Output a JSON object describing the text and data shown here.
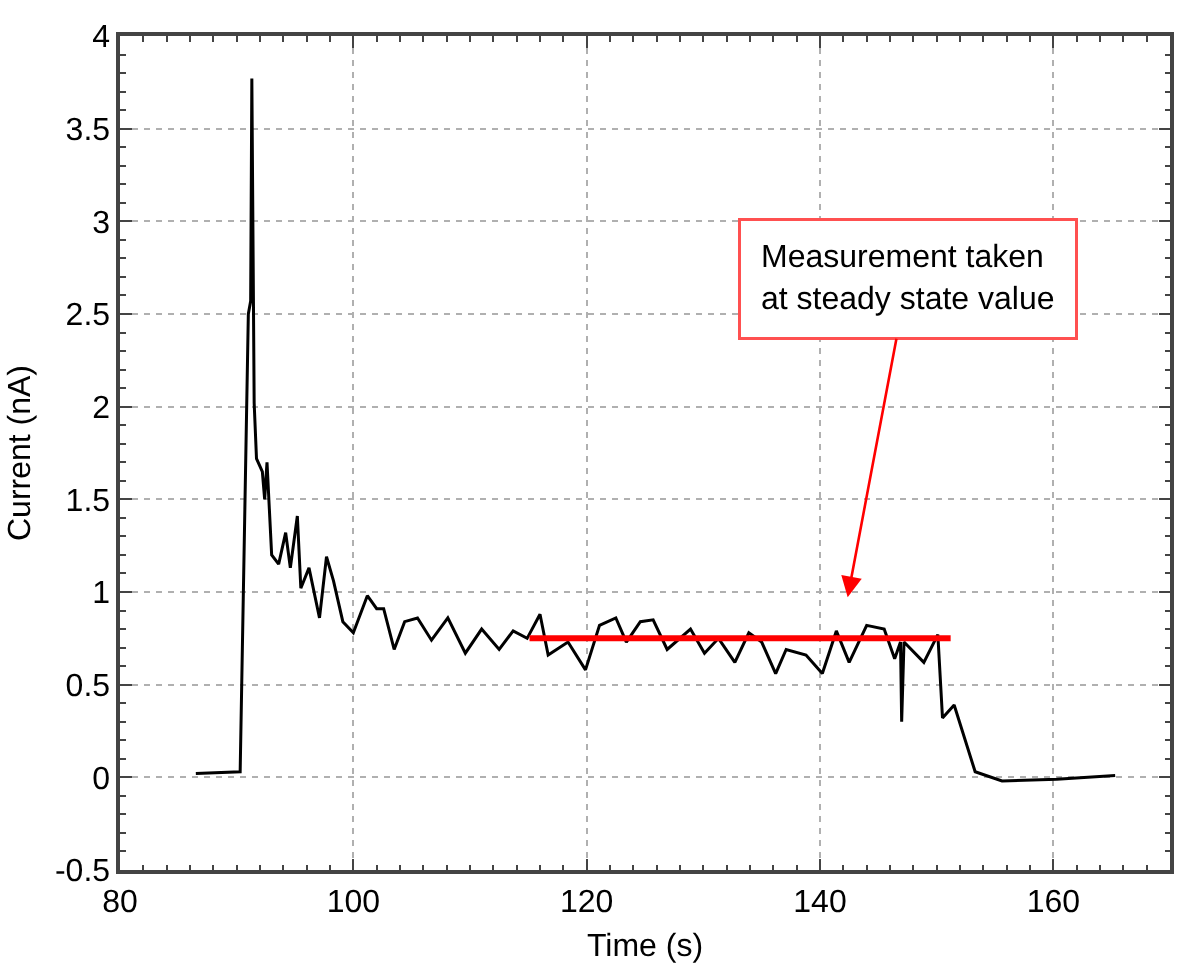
{
  "chart_data": {
    "type": "line",
    "xlabel": "Time (s)",
    "ylabel": "Current (nA)",
    "xlim": [
      80,
      170
    ],
    "xticks": [
      80,
      100,
      120,
      140,
      160
    ],
    "ylim": [
      -0.5,
      4
    ],
    "yticks": [
      -0.5,
      0,
      0.5,
      1,
      1.5,
      2,
      2.5,
      3,
      3.5,
      4
    ],
    "grid": true,
    "marker": "none",
    "line_style": "solid",
    "series": [
      {
        "color": "#000000",
        "x": [
          86.5,
          90.3,
          91.0,
          91.2,
          91.3,
          91.5,
          91.7,
          92.2,
          92.4,
          92.6,
          93.0,
          93.6,
          94.2,
          94.6,
          95.2,
          95.5,
          96.2,
          97.1,
          97.7,
          98.3,
          99.1,
          100,
          101.2,
          102,
          102.6,
          103.5,
          104.4,
          105.5,
          106.7,
          108.1,
          109.6,
          111.0,
          112.5,
          113.7,
          114.9,
          116,
          116.7,
          118.4,
          119.9,
          121.1,
          122.5,
          123.4,
          124.6,
          125.7,
          126.9,
          128.9,
          130.1,
          131.3,
          132.7,
          133.9,
          135,
          136.2,
          137.1,
          138.8,
          140.2,
          141.4,
          142.5,
          144.0,
          145.5,
          146.4,
          146.9,
          147.0,
          147.2,
          148.9,
          150.1,
          150.5,
          151.5,
          153.3,
          155.6,
          160.3,
          165.3
        ],
        "values": [
          0.02,
          0.03,
          2.5,
          2.57,
          3.77,
          2.02,
          1.72,
          1.65,
          1.5,
          1.7,
          1.2,
          1.15,
          1.32,
          1.13,
          1.41,
          1.02,
          1.13,
          0.86,
          1.19,
          1.06,
          0.84,
          0.78,
          0.98,
          0.91,
          0.91,
          0.69,
          0.84,
          0.86,
          0.74,
          0.86,
          0.67,
          0.8,
          0.69,
          0.79,
          0.75,
          0.88,
          0.66,
          0.73,
          0.58,
          0.82,
          0.86,
          0.73,
          0.84,
          0.85,
          0.69,
          0.8,
          0.67,
          0.75,
          0.62,
          0.78,
          0.73,
          0.56,
          0.69,
          0.66,
          0.56,
          0.79,
          0.62,
          0.82,
          0.8,
          0.64,
          0.73,
          0.3,
          0.73,
          0.62,
          0.77,
          0.32,
          0.39,
          0.03,
          -0.02,
          -0.01,
          0.01
        ]
      },
      {
        "color": "#ff0000",
        "x": [
          115.1,
          151.2
        ],
        "values": [
          0.75,
          0.75
        ]
      }
    ],
    "annotations": [
      "Measurement taken\nat steady state value"
    ]
  }
}
